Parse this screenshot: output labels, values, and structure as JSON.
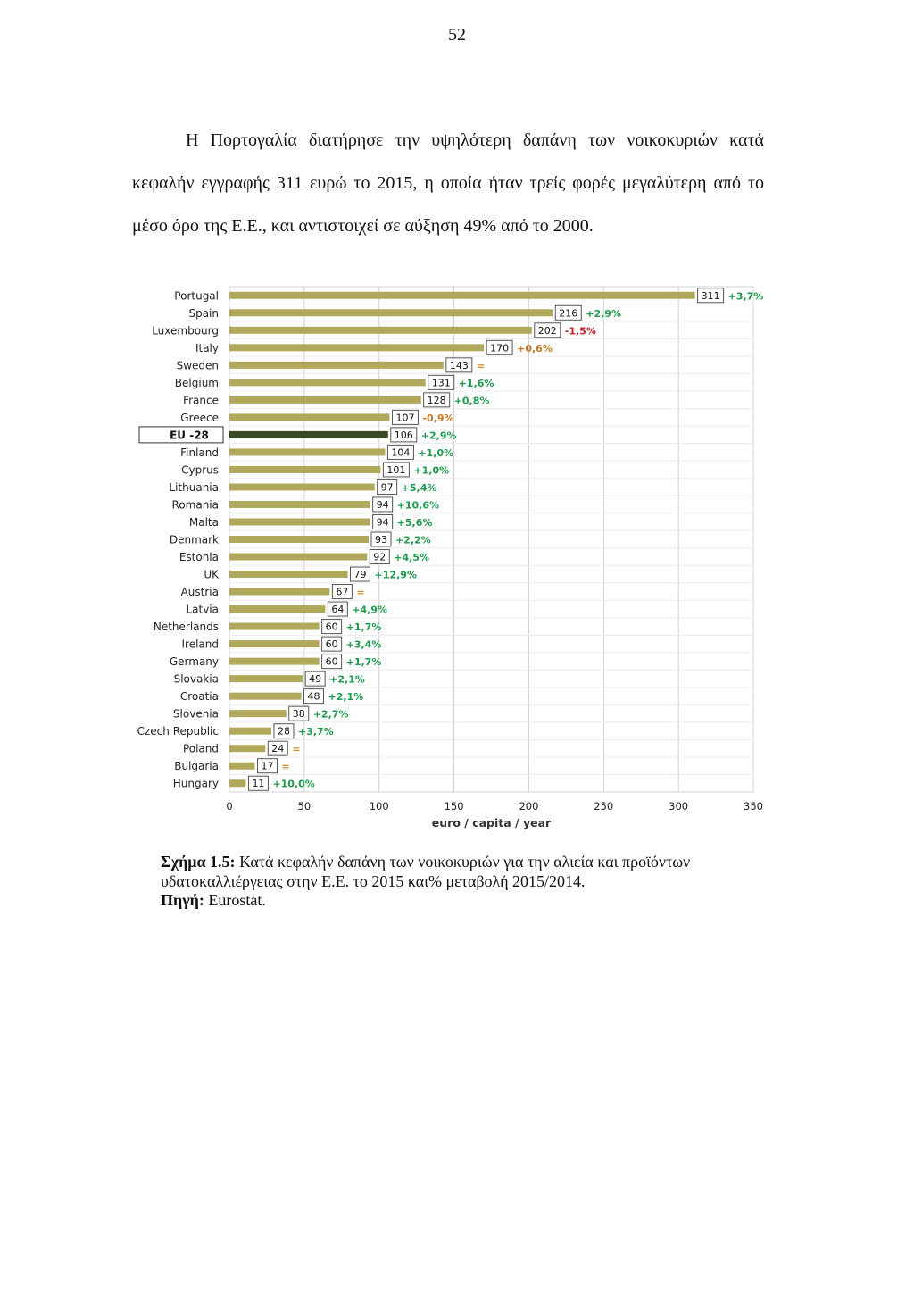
{
  "page": {
    "number": "52",
    "intro_lines": [
      "Η Πορτογαλία διατήρησε την υψηλότερη δαπάνη των νοικοκυριών κατά",
      "κεφαλήν εγγραφής 311 ευρώ το 2015, η οποία ήταν τρείς φορές μεγαλύτερη από το",
      "μέσο όρο της Ε.Ε., και αντιστοιχεί σε αύξηση 49% από το 2000."
    ],
    "caption_label": "Σχήμα 1.5:",
    "caption_text_line1": " Κατά κεφαλήν δαπάνη των νοικοκυριών για την αλιεία και προϊόντων",
    "caption_text_line2": "υδατοκαλλιέργειας στην Ε.Ε. το 2015 και% μεταβολή 2015/2014.",
    "source_label": "Πηγή:",
    "source_text": " Eurostat."
  },
  "chart_data": {
    "type": "bar",
    "orientation": "horizontal",
    "xlabel": "euro / capita / year",
    "xlim": [
      0,
      350
    ],
    "xticks": [
      0,
      50,
      100,
      150,
      200,
      250,
      300,
      350
    ],
    "grid": true,
    "categories": [
      "Portugal",
      "Spain",
      "Luxembourg",
      "Italy",
      "Sweden",
      "Belgium",
      "France",
      "Greece",
      "EU -28",
      "Finland",
      "Cyprus",
      "Lithuania",
      "Romania",
      "Malta",
      "Denmark",
      "Estonia",
      "UK",
      "Austria",
      "Latvia",
      "Netherlands",
      "Ireland",
      "Germany",
      "Slovakia",
      "Croatia",
      "Slovenia",
      "Czech Republic",
      "Poland",
      "Bulgaria",
      "Hungary"
    ],
    "values": [
      311,
      216,
      202,
      170,
      143,
      131,
      128,
      107,
      106,
      104,
      101,
      97,
      94,
      94,
      93,
      92,
      79,
      67,
      64,
      60,
      60,
      60,
      49,
      48,
      38,
      28,
      24,
      17,
      11
    ],
    "changes": [
      "+3,7%",
      "+2,9%",
      "-1,5%",
      "+0,6%",
      "=",
      "+1,6%",
      "+0,8%",
      "-0,9%",
      "+2,9%",
      "+1,0%",
      "+1,0%",
      "+5,4%",
      "+10,6%",
      "+5,6%",
      "+2,2%",
      "+4,5%",
      "+12,9%",
      "=",
      "+4,9%",
      "+1,7%",
      "+3,4%",
      "+1,7%",
      "+2,1%",
      "+2,1%",
      "+2,7%",
      "+3,7%",
      "=",
      "=",
      "+10,0%"
    ],
    "highlight": "EU -28",
    "colors": {
      "bar": "#b0a85a",
      "highlight_bar": "#3b4a22",
      "increase": "#1f9a4f",
      "decrease_strong": "#c0282d",
      "decrease_mild": "#c87824",
      "unchanged": "#d08a2a",
      "grid": "#d0d0d0"
    }
  }
}
